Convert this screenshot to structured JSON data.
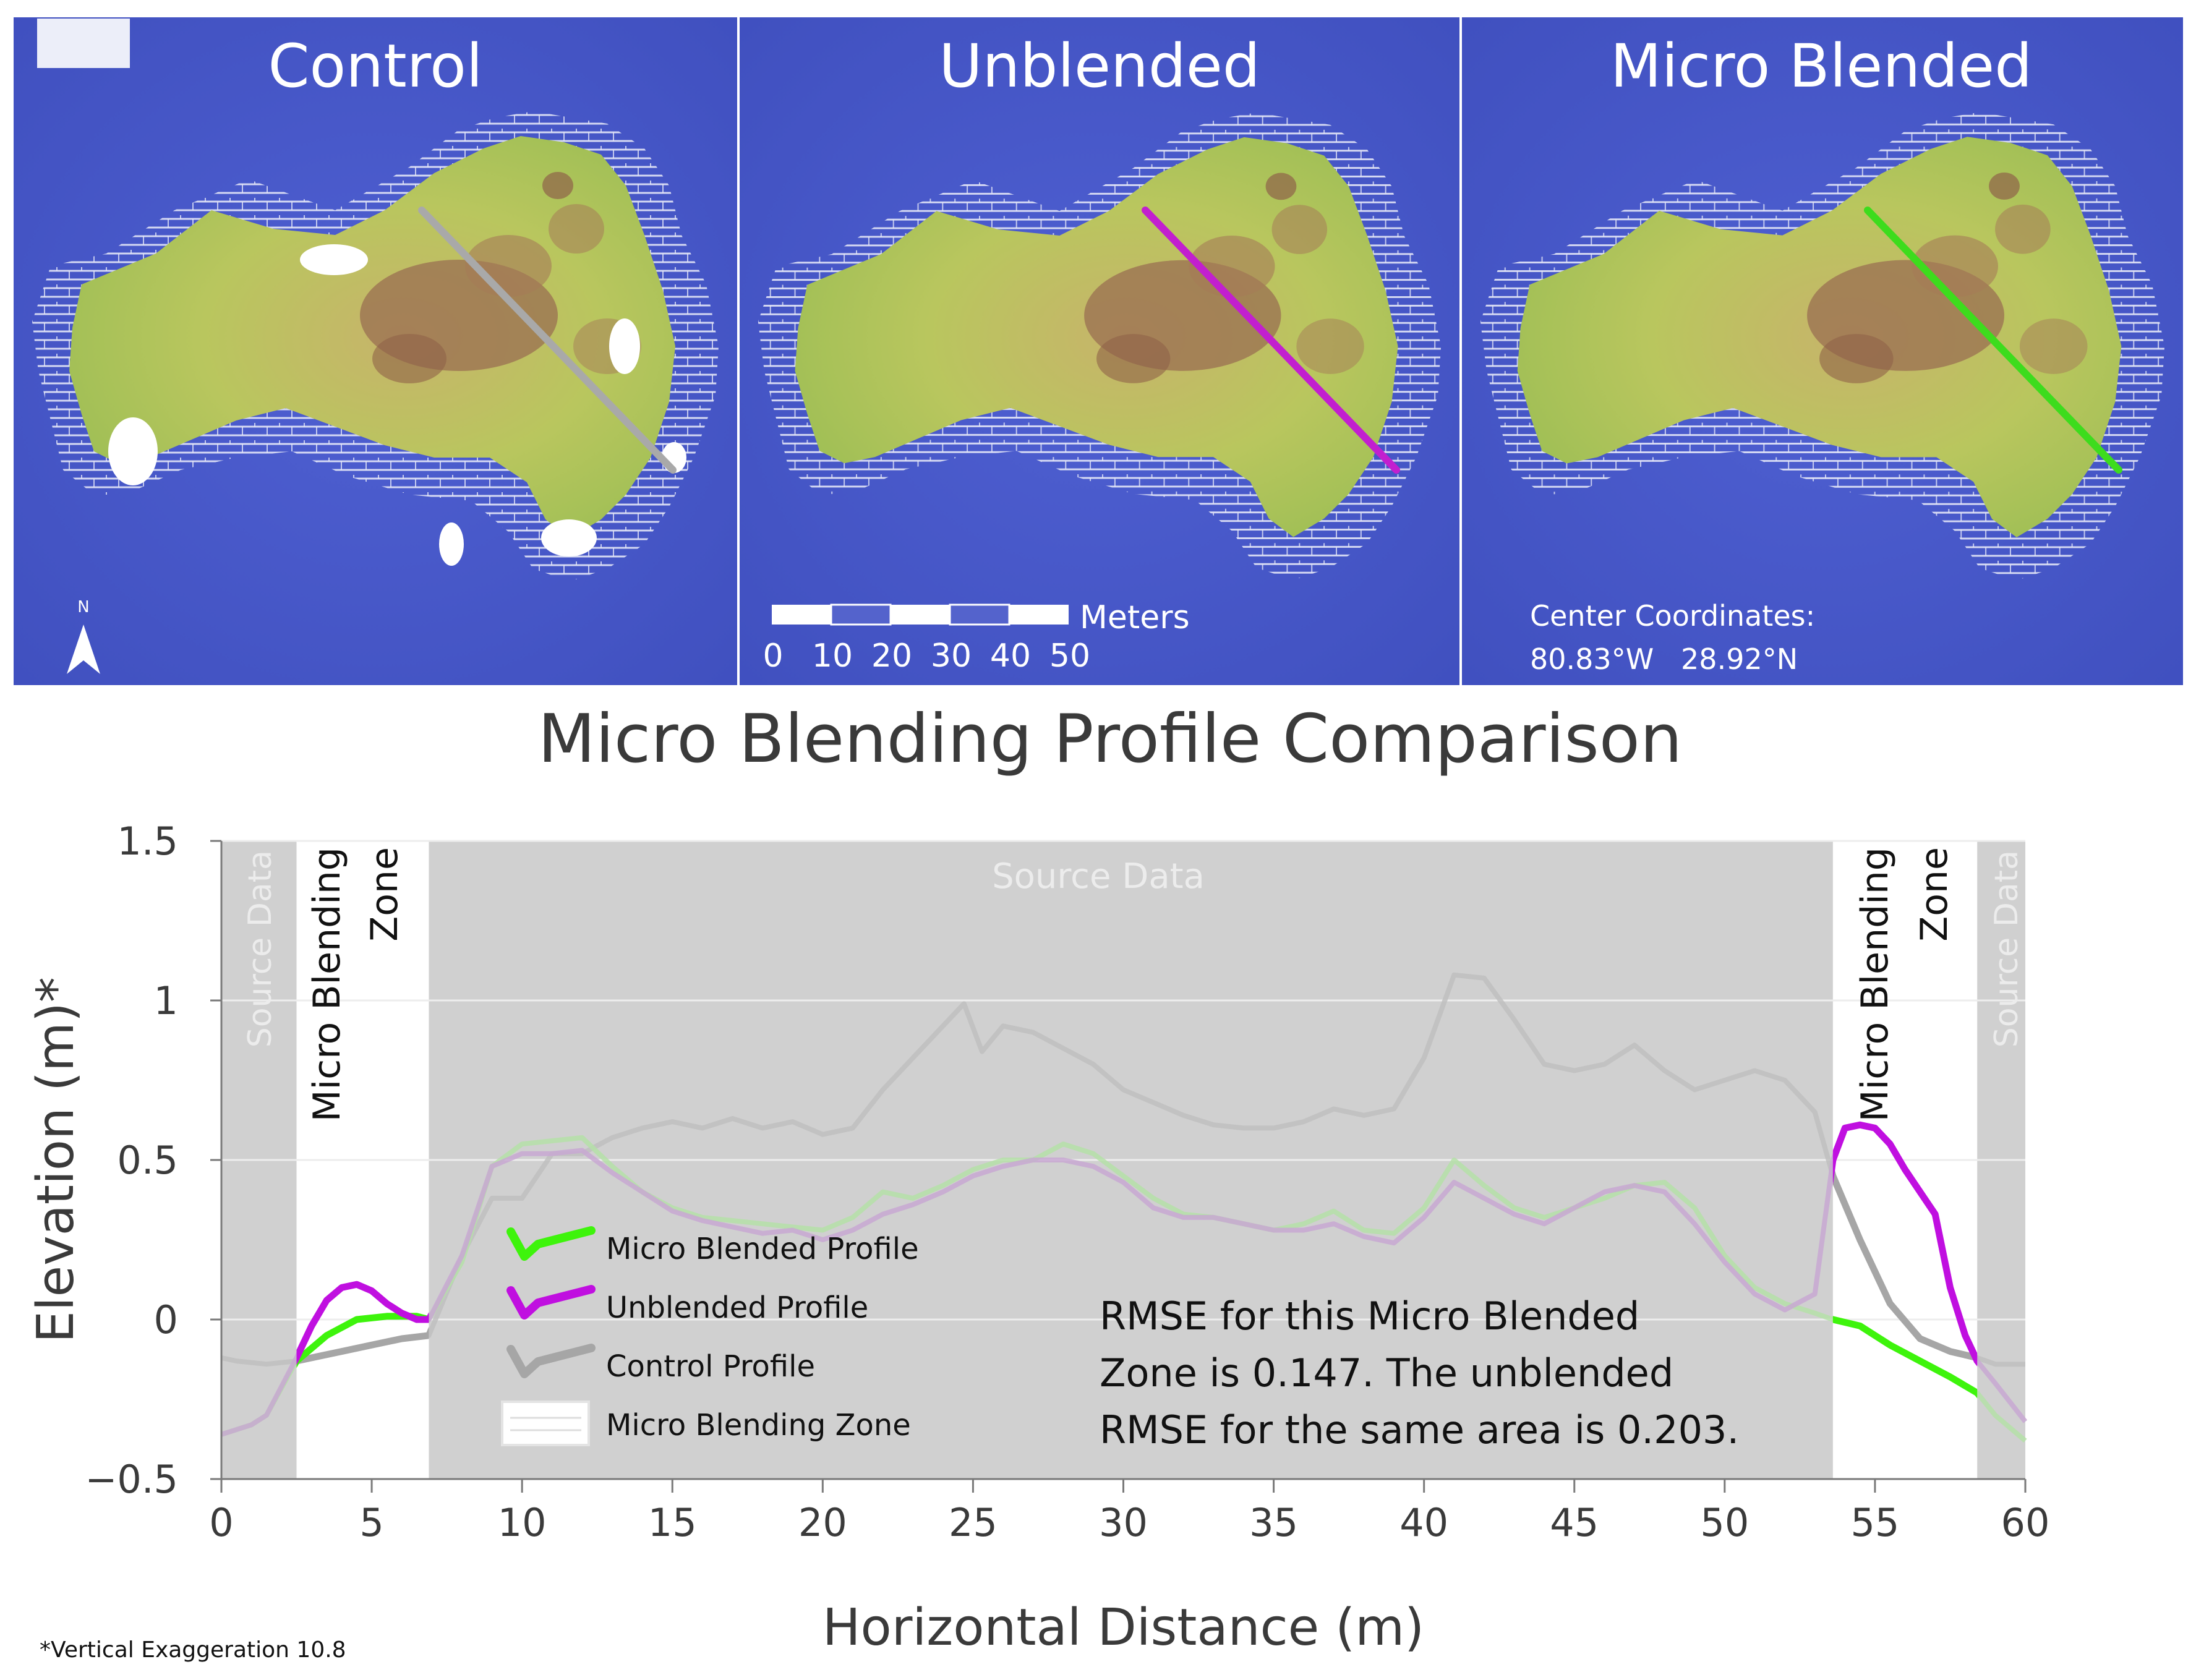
{
  "maps": {
    "panels": [
      {
        "title": "Control",
        "transect_color": "#a9a9a9"
      },
      {
        "title": "Unblended",
        "transect_color": "#c21fcf"
      },
      {
        "title": "Micro Blended",
        "transect_color": "#3ddc1d"
      }
    ],
    "north_label": "N",
    "scale_unit": "Meters",
    "scale_ticks": [
      "0",
      "10",
      "20",
      "30",
      "40",
      "50"
    ],
    "coords_title": "Center Coordinates:",
    "coords_value": "80.83°W   28.92°N",
    "colors": {
      "water": "#4a59c8",
      "land": "#b7c35a",
      "highland": "#9a6f52",
      "void": "#ffffff"
    }
  },
  "chart_title": "Micro Blending Profile Comparison",
  "footnote": "*Vertical Exaggeration 10.8",
  "annotations": {
    "source_data": "Source Data",
    "zone_line1": "Micro Blending",
    "zone_line2": "Zone",
    "rmse_lines": [
      "RMSE for this Micro Blended",
      "Zone is 0.147. The unblended",
      "RMSE for the same area is 0.203."
    ]
  },
  "legend": [
    {
      "label": "Micro Blended Profile",
      "color": "#3ef40c"
    },
    {
      "label": "Unblended Profile",
      "color": "#c00fe0"
    },
    {
      "label": "Control Profile",
      "color": "#a6a6a6"
    },
    {
      "label": "Micro Blending Zone",
      "color": "#ffffff"
    }
  ],
  "chart_data": {
    "type": "line",
    "title": "Micro Blending Profile Comparison",
    "xlabel": "Horizontal Distance (m)",
    "ylabel": "Elevation (m)*",
    "xlim": [
      0,
      60
    ],
    "ylim": [
      -0.5,
      1.5
    ],
    "xticks": [
      0,
      5,
      10,
      15,
      20,
      25,
      30,
      35,
      40,
      45,
      50,
      55,
      60
    ],
    "yticks": [
      -0.5,
      0,
      0.5,
      1,
      1.5
    ],
    "ytick_labels": [
      "−0.5",
      "0",
      "0.5",
      "1",
      "1.5"
    ],
    "grid": true,
    "micro_blending_zones": [
      [
        2.5,
        6.9
      ],
      [
        53.6,
        58.4
      ]
    ],
    "series": [
      {
        "name": "Control Profile",
        "color": "#a6a6a6",
        "x": [
          0,
          0.5,
          1.5,
          2.5,
          3,
          4,
          5,
          6,
          6.9,
          8,
          9,
          10,
          11,
          12,
          13,
          14,
          15,
          16,
          17,
          18,
          19,
          20,
          21,
          22,
          23,
          24,
          24.7,
          25.3,
          26,
          27,
          28,
          29,
          30,
          31,
          32,
          33,
          34,
          35,
          36,
          37,
          38,
          39,
          40,
          41,
          42,
          43,
          44,
          45,
          46,
          47,
          48,
          49,
          50,
          51,
          52,
          53,
          53.6,
          54.5,
          55.5,
          56.5,
          57.5,
          58.4,
          59,
          60
        ],
        "y": [
          -0.12,
          -0.13,
          -0.14,
          -0.13,
          -0.12,
          -0.1,
          -0.08,
          -0.06,
          -0.05,
          0.2,
          0.38,
          0.38,
          0.52,
          0.52,
          0.57,
          0.6,
          0.62,
          0.6,
          0.63,
          0.6,
          0.62,
          0.58,
          0.6,
          0.72,
          0.82,
          0.92,
          0.99,
          0.84,
          0.92,
          0.9,
          0.85,
          0.8,
          0.72,
          0.68,
          0.64,
          0.61,
          0.6,
          0.6,
          0.62,
          0.66,
          0.64,
          0.66,
          0.82,
          1.08,
          1.07,
          0.94,
          0.8,
          0.78,
          0.8,
          0.86,
          0.78,
          0.72,
          0.75,
          0.78,
          0.75,
          0.65,
          0.45,
          0.25,
          0.05,
          -0.06,
          -0.1,
          -0.12,
          -0.14,
          -0.14
        ]
      },
      {
        "name": "Micro Blended Profile",
        "color": "#3ef40c",
        "x": [
          0,
          1,
          1.5,
          2.5,
          3.5,
          4.5,
          5.5,
          6.5,
          6.9,
          8,
          9,
          10,
          11,
          12,
          13,
          14,
          15,
          16,
          17,
          18,
          19,
          20,
          21,
          22,
          23,
          24,
          25,
          26,
          27,
          28,
          29,
          30,
          31,
          32,
          33,
          34,
          35,
          36,
          37,
          38,
          39,
          40,
          41,
          42,
          43,
          44,
          45,
          46,
          47,
          48,
          49,
          50,
          51,
          52,
          53,
          53.6,
          54.5,
          55.5,
          56.5,
          57.5,
          58.4,
          59,
          60
        ],
        "y": [
          -0.36,
          -0.33,
          -0.3,
          -0.13,
          -0.05,
          0,
          0.01,
          0.01,
          0,
          0.18,
          0.48,
          0.55,
          0.56,
          0.57,
          0.48,
          0.4,
          0.35,
          0.32,
          0.31,
          0.3,
          0.29,
          0.28,
          0.32,
          0.4,
          0.38,
          0.42,
          0.47,
          0.5,
          0.5,
          0.55,
          0.52,
          0.45,
          0.38,
          0.33,
          0.32,
          0.3,
          0.28,
          0.3,
          0.34,
          0.28,
          0.27,
          0.35,
          0.5,
          0.42,
          0.35,
          0.32,
          0.35,
          0.38,
          0.42,
          0.43,
          0.35,
          0.2,
          0.1,
          0.05,
          0.02,
          0,
          -0.02,
          -0.08,
          -0.13,
          -0.18,
          -0.23,
          -0.3,
          -0.38
        ]
      },
      {
        "name": "Unblended Profile",
        "color": "#c00fe0",
        "x": [
          0,
          1,
          1.5,
          2.5,
          3,
          3.5,
          4,
          4.5,
          5,
          5.5,
          6,
          6.5,
          6.9,
          8,
          9,
          10,
          11,
          12,
          13,
          14,
          15,
          16,
          17,
          18,
          19,
          20,
          21,
          22,
          23,
          24,
          25,
          26,
          27,
          28,
          29,
          30,
          31,
          32,
          33,
          34,
          35,
          36,
          37,
          38,
          39,
          40,
          41,
          42,
          43,
          44,
          45,
          46,
          47,
          48,
          49,
          50,
          51,
          52,
          53,
          53.6,
          54,
          54.5,
          55,
          55.5,
          56,
          56.5,
          57,
          57.5,
          58,
          58.4,
          59,
          60
        ],
        "y": [
          -0.36,
          -0.33,
          -0.3,
          -0.12,
          -0.02,
          0.06,
          0.1,
          0.11,
          0.09,
          0.05,
          0.02,
          0,
          0,
          0.2,
          0.48,
          0.52,
          0.52,
          0.53,
          0.46,
          0.4,
          0.34,
          0.31,
          0.29,
          0.27,
          0.28,
          0.25,
          0.28,
          0.33,
          0.36,
          0.4,
          0.45,
          0.48,
          0.5,
          0.5,
          0.48,
          0.43,
          0.35,
          0.32,
          0.32,
          0.3,
          0.28,
          0.28,
          0.3,
          0.26,
          0.24,
          0.32,
          0.43,
          0.38,
          0.33,
          0.3,
          0.35,
          0.4,
          0.42,
          0.4,
          0.3,
          0.18,
          0.08,
          0.03,
          0.08,
          0.5,
          0.6,
          0.61,
          0.6,
          0.55,
          0.47,
          0.4,
          0.33,
          0.1,
          -0.05,
          -0.13,
          -0.2,
          -0.32
        ]
      }
    ]
  }
}
